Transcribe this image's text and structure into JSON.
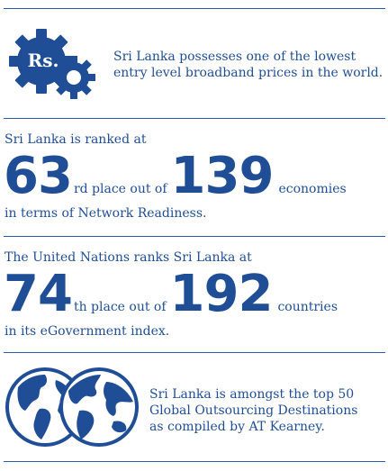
{
  "broadband": {
    "icon_badge": "Rs.",
    "icon": "gears-rupee-icon",
    "text": "Sri Lanka possesses one of the lowest entry level broadband prices in the world."
  },
  "network": {
    "intro": "Sri Lanka is ranked at",
    "rank": "63",
    "rank_suffix": "rd place out of",
    "total": "139",
    "total_suffix": "economies",
    "outro": "in terms of Network Readiness."
  },
  "egov": {
    "intro": "The United Nations ranks Sri Lanka at",
    "rank": "74",
    "rank_suffix": "th place out of",
    "total": "192",
    "total_suffix": "countries",
    "outro": "in its eGovernment index."
  },
  "outsourcing": {
    "icon": "globes-icon",
    "text": "Sri Lanka is amongst the top 50 Global Outsourcing Destinations as compiled by AT Kearney."
  },
  "colors": {
    "primary": "#1f4e96",
    "rule": "#2a5ba5"
  }
}
